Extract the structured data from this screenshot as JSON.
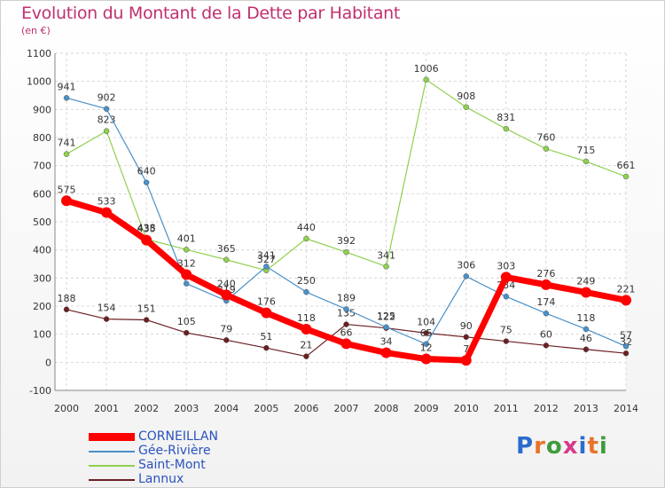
{
  "title": "Evolution du Montant de la Dette par Habitant",
  "subtitle": "(en €)",
  "logo": {
    "text": "Proxiti",
    "letter_colors": [
      "#2a6ccd",
      "#e8732a",
      "#3d9c3d",
      "#d83a8a",
      "#2a6ccd",
      "#e8732a",
      "#3d9c3d"
    ]
  },
  "chart_data": {
    "type": "line",
    "title": "Evolution du Montant de la Dette par Habitant",
    "subtitle": "(en €)",
    "xlabel": "",
    "ylabel": "",
    "x": [
      "2000",
      "2001",
      "2002",
      "2003",
      "2004",
      "2005",
      "2006",
      "2007",
      "2008",
      "2009",
      "2010",
      "2011",
      "2012",
      "2013",
      "2014"
    ],
    "ylim": [
      -100,
      1100
    ],
    "yticks": [
      "-100",
      "0",
      "100",
      "200",
      "300",
      "400",
      "500",
      "600",
      "700",
      "800",
      "900",
      "1000",
      "1100"
    ],
    "grid": true,
    "legend_position": "bottom-left",
    "series": [
      {
        "name": "Lannux",
        "color": "#6b1f22",
        "values": [
          188,
          154,
          151,
          105,
          79,
          51,
          21,
          135,
          122,
          104,
          90,
          75,
          60,
          46,
          32
        ],
        "labels": [
          "188",
          "154",
          "151",
          "105",
          "79",
          "51",
          "21",
          "135",
          "122",
          "104",
          "90",
          "75",
          "60",
          "46",
          "32"
        ]
      },
      {
        "name": "Saint-Mont",
        "color": "#8fd14f",
        "values": [
          741,
          823,
          438,
          401,
          365,
          327,
          440,
          392,
          341,
          1006,
          908,
          831,
          760,
          715,
          661
        ],
        "labels": [
          "741",
          "823",
          "438",
          "401",
          "365",
          "327",
          "440",
          "392",
          "341",
          "1006",
          "908",
          "831",
          "760",
          "715",
          "661"
        ]
      },
      {
        "name": "Gée-Rivière",
        "color": "#4a90c8",
        "values": [
          941,
          902,
          640,
          280,
          219,
          341,
          250,
          189,
          125,
          65,
          306,
          234,
          174,
          118,
          57
        ],
        "labels": [
          "941",
          "902",
          "640",
          "",
          "219",
          "341",
          "250",
          "189",
          "125",
          "65",
          "306",
          "234",
          "174",
          "118",
          "57"
        ]
      },
      {
        "name": "CORNEILLAN",
        "color": "#ff0000",
        "values": [
          575,
          533,
          435,
          312,
          240,
          176,
          118,
          66,
          34,
          12,
          7,
          303,
          276,
          249,
          221
        ],
        "labels": [
          "575",
          "533",
          "435",
          "312",
          "240",
          "176",
          "118",
          "66",
          "34",
          "12",
          "7",
          "303",
          "276",
          "249",
          "221"
        ]
      }
    ],
    "legend_order": [
      "CORNEILLAN",
      "Gée-Rivière",
      "Saint-Mont",
      "Lannux"
    ]
  }
}
